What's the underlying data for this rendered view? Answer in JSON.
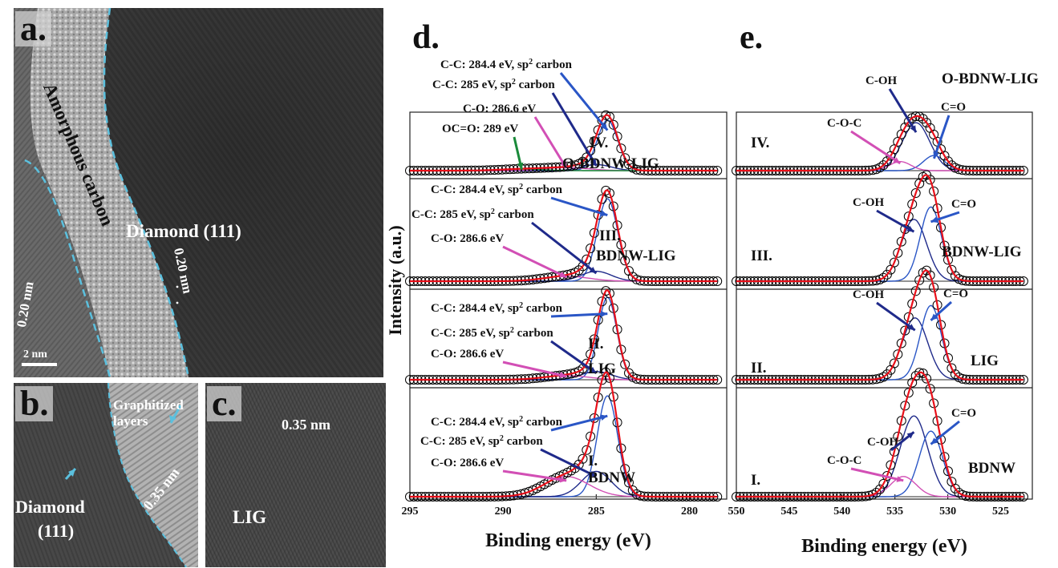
{
  "figure": {
    "panel_a": {
      "letter": "a.",
      "amorphous_label": "Amorphous carbon",
      "diamond_label": "Diamond (111)",
      "spacing_left": "0.20 nm",
      "spacing_right": "0.20 nm",
      "scale_bar": "2 nm"
    },
    "panel_b": {
      "letter": "b.",
      "graphitized_label": "Graphitized layers",
      "diamond_label_1": "Diamond",
      "diamond_label_2": "(111)",
      "spacing": "0.35 nm"
    },
    "panel_c": {
      "letter": "c.",
      "spacing": "0.35 nm",
      "lig_label": "LIG"
    },
    "colors": {
      "dashed_boundary": "#5bc0de",
      "fit_envelope": "#e8101a",
      "component_blue": "#2a56c6",
      "component_navy": "#1f2a8a",
      "component_magenta": "#d24fb5",
      "component_green": "#1a8a3a",
      "baseline": "#555555",
      "data_marker": "#000000"
    }
  },
  "chart_data": [
    {
      "type": "line",
      "panel": "d.",
      "xlabel": "Binding energy (eV)",
      "ylabel": "Intensity (a.u.)",
      "xlim": [
        295,
        278
      ],
      "x_reversed": true,
      "x_ticks": [
        295,
        290,
        285,
        280
      ],
      "grid": false,
      "stack": [
        {
          "sample": "IV. O-BDNW-LIG",
          "sample_lines": [
            "IV.",
            "O-BDNW-LIG"
          ],
          "peaks": [
            {
              "label": "C-C: 284.4 eV, sp",
              "sup": "2",
              "tail": " carbon",
              "center": 284.4,
              "height": 1.0,
              "width": 0.55,
              "color": "blue"
            },
            {
              "label": "C-C: 285 eV, sp",
              "sup": "2",
              "tail": " carbon",
              "center": 285.0,
              "height": 0.12,
              "width": 0.8,
              "color": "navy"
            },
            {
              "label": "C-O: 286.6 eV",
              "sup": "",
              "tail": "",
              "center": 286.6,
              "height": 0.06,
              "width": 1.2,
              "color": "magenta"
            },
            {
              "label": "OC=O: 289 eV",
              "sup": "",
              "tail": "",
              "center": 289.0,
              "height": 0.03,
              "width": 1.2,
              "color": "green"
            }
          ]
        },
        {
          "sample": "III. BDNW-LIG",
          "sample_lines": [
            "III.",
            "BDNW-LIG"
          ],
          "peaks": [
            {
              "label": "C-C: 284.4 eV, sp",
              "sup": "2",
              "tail": " carbon",
              "center": 284.4,
              "height": 1.0,
              "width": 0.55,
              "color": "blue"
            },
            {
              "label": "C-C: 285 eV, sp",
              "sup": "2",
              "tail": " carbon",
              "center": 285.0,
              "height": 0.12,
              "width": 0.8,
              "color": "navy"
            },
            {
              "label": "C-O: 286.6 eV",
              "sup": "",
              "tail": "",
              "center": 286.6,
              "height": 0.06,
              "width": 1.2,
              "color": "magenta"
            }
          ]
        },
        {
          "sample": "II. LIG",
          "sample_lines": [
            "II.",
            "LIG"
          ],
          "peaks": [
            {
              "label": "C-C: 284.4 eV, sp",
              "sup": "2",
              "tail": " carbon",
              "center": 284.4,
              "height": 1.0,
              "width": 0.5,
              "color": "blue"
            },
            {
              "label": "C-C: 285 eV, sp",
              "sup": "2",
              "tail": " carbon",
              "center": 285.0,
              "height": 0.1,
              "width": 0.8,
              "color": "navy"
            },
            {
              "label": "C-O: 286.6 eV",
              "sup": "",
              "tail": "",
              "center": 286.6,
              "height": 0.05,
              "width": 1.2,
              "color": "magenta"
            }
          ]
        },
        {
          "sample": "I. BDNW",
          "sample_lines": [
            "I.",
            "BDNW"
          ],
          "peaks": [
            {
              "label": "C-C: 284.4 eV, sp",
              "sup": "2",
              "tail": " carbon",
              "center": 284.4,
              "height": 1.0,
              "width": 0.55,
              "color": "blue"
            },
            {
              "label": "C-C: 285 eV, sp",
              "sup": "2",
              "tail": " carbon",
              "center": 285.0,
              "height": 0.25,
              "width": 0.8,
              "color": "navy"
            },
            {
              "label": "C-O: 286.6 eV",
              "sup": "",
              "tail": "",
              "center": 286.6,
              "height": 0.2,
              "width": 1.2,
              "color": "magenta"
            }
          ]
        }
      ]
    },
    {
      "type": "line",
      "panel": "e.",
      "xlabel": "Binding energy (eV)",
      "ylabel": "",
      "xlim": [
        550,
        522
      ],
      "x_reversed": true,
      "x_ticks": [
        550,
        545,
        540,
        535,
        530,
        525
      ],
      "grid": false,
      "stack": [
        {
          "sample": "IV. O-BDNW-LIG",
          "sample_lines": [
            "IV.",
            "O-BDNW-LIG"
          ],
          "peaks": [
            {
              "label": "C-OH",
              "center": 533.0,
              "height": 0.95,
              "width": 1.3,
              "color": "navy"
            },
            {
              "label": "C=O",
              "center": 531.3,
              "height": 0.3,
              "width": 1.0,
              "color": "blue"
            },
            {
              "label": "C-O-C",
              "center": 534.5,
              "height": 0.18,
              "width": 1.0,
              "color": "magenta"
            }
          ]
        },
        {
          "sample": "III. BDNW-LIG",
          "sample_lines": [
            "III.",
            "BDNW-LIG"
          ],
          "peaks": [
            {
              "label": "C-OH",
              "center": 533.2,
              "height": 0.75,
              "width": 1.2,
              "color": "navy"
            },
            {
              "label": "C=O",
              "center": 531.6,
              "height": 0.9,
              "width": 1.0,
              "color": "blue"
            }
          ]
        },
        {
          "sample": "II. LIG",
          "sample_lines": [
            "II.",
            "LIG"
          ],
          "peaks": [
            {
              "label": "C-OH",
              "center": 533.1,
              "height": 0.75,
              "width": 1.2,
              "color": "navy"
            },
            {
              "label": "C=O",
              "center": 531.6,
              "height": 0.9,
              "width": 1.0,
              "color": "blue"
            }
          ]
        },
        {
          "sample": "I. BDNW",
          "sample_lines": [
            "I.",
            "BDNW"
          ],
          "peaks": [
            {
              "label": "C-OH",
              "center": 533.2,
              "height": 0.8,
              "width": 1.3,
              "color": "navy"
            },
            {
              "label": "C=O",
              "center": 531.6,
              "height": 0.65,
              "width": 1.1,
              "color": "blue"
            },
            {
              "label": "C-O-C",
              "center": 534.2,
              "height": 0.2,
              "width": 1.2,
              "color": "magenta"
            }
          ]
        }
      ]
    }
  ]
}
